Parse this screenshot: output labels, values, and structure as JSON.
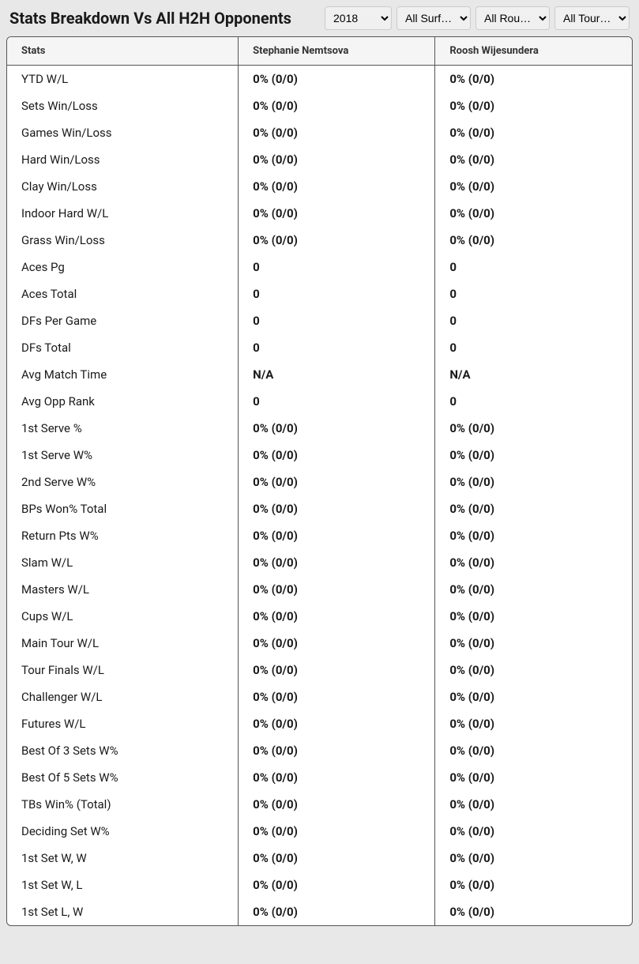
{
  "header": {
    "title": "Stats Breakdown Vs All H2H Opponents"
  },
  "filters": {
    "year": {
      "selected": "2018",
      "options": [
        "2018"
      ]
    },
    "surface": {
      "selected": "All Surf…",
      "options": [
        "All Surf…"
      ]
    },
    "round": {
      "selected": "All Rou…",
      "options": [
        "All Rou…"
      ]
    },
    "tour": {
      "selected": "All Tour…",
      "options": [
        "All Tour…"
      ]
    }
  },
  "table": {
    "columns": [
      "Stats",
      "Stephanie Nemtsova",
      "Roosh Wijesundera"
    ],
    "rows": [
      [
        "YTD W/L",
        "0% (0/0)",
        "0% (0/0)"
      ],
      [
        "Sets Win/Loss",
        "0% (0/0)",
        "0% (0/0)"
      ],
      [
        "Games Win/Loss",
        "0% (0/0)",
        "0% (0/0)"
      ],
      [
        "Hard Win/Loss",
        "0% (0/0)",
        "0% (0/0)"
      ],
      [
        "Clay Win/Loss",
        "0% (0/0)",
        "0% (0/0)"
      ],
      [
        "Indoor Hard W/L",
        "0% (0/0)",
        "0% (0/0)"
      ],
      [
        "Grass Win/Loss",
        "0% (0/0)",
        "0% (0/0)"
      ],
      [
        "Aces Pg",
        "0",
        "0"
      ],
      [
        "Aces Total",
        "0",
        "0"
      ],
      [
        "DFs Per Game",
        "0",
        "0"
      ],
      [
        "DFs Total",
        "0",
        "0"
      ],
      [
        "Avg Match Time",
        "N/A",
        "N/A"
      ],
      [
        "Avg Opp Rank",
        "0",
        "0"
      ],
      [
        "1st Serve %",
        "0% (0/0)",
        "0% (0/0)"
      ],
      [
        "1st Serve W%",
        "0% (0/0)",
        "0% (0/0)"
      ],
      [
        "2nd Serve W%",
        "0% (0/0)",
        "0% (0/0)"
      ],
      [
        "BPs Won% Total",
        "0% (0/0)",
        "0% (0/0)"
      ],
      [
        "Return Pts W%",
        "0% (0/0)",
        "0% (0/0)"
      ],
      [
        "Slam W/L",
        "0% (0/0)",
        "0% (0/0)"
      ],
      [
        "Masters W/L",
        "0% (0/0)",
        "0% (0/0)"
      ],
      [
        "Cups W/L",
        "0% (0/0)",
        "0% (0/0)"
      ],
      [
        "Main Tour W/L",
        "0% (0/0)",
        "0% (0/0)"
      ],
      [
        "Tour Finals W/L",
        "0% (0/0)",
        "0% (0/0)"
      ],
      [
        "Challenger W/L",
        "0% (0/0)",
        "0% (0/0)"
      ],
      [
        "Futures W/L",
        "0% (0/0)",
        "0% (0/0)"
      ],
      [
        "Best Of 3 Sets W%",
        "0% (0/0)",
        "0% (0/0)"
      ],
      [
        "Best Of 5 Sets W%",
        "0% (0/0)",
        "0% (0/0)"
      ],
      [
        "TBs Win% (Total)",
        "0% (0/0)",
        "0% (0/0)"
      ],
      [
        "Deciding Set W%",
        "0% (0/0)",
        "0% (0/0)"
      ],
      [
        "1st Set W, W",
        "0% (0/0)",
        "0% (0/0)"
      ],
      [
        "1st Set W, L",
        "0% (0/0)",
        "0% (0/0)"
      ],
      [
        "1st Set L, W",
        "0% (0/0)",
        "0% (0/0)"
      ]
    ]
  },
  "colors": {
    "background": "#e8e8e8",
    "table_background": "#ffffff",
    "header_background": "#f5f5f5",
    "border": "#555555",
    "text": "#1a1a1a"
  }
}
